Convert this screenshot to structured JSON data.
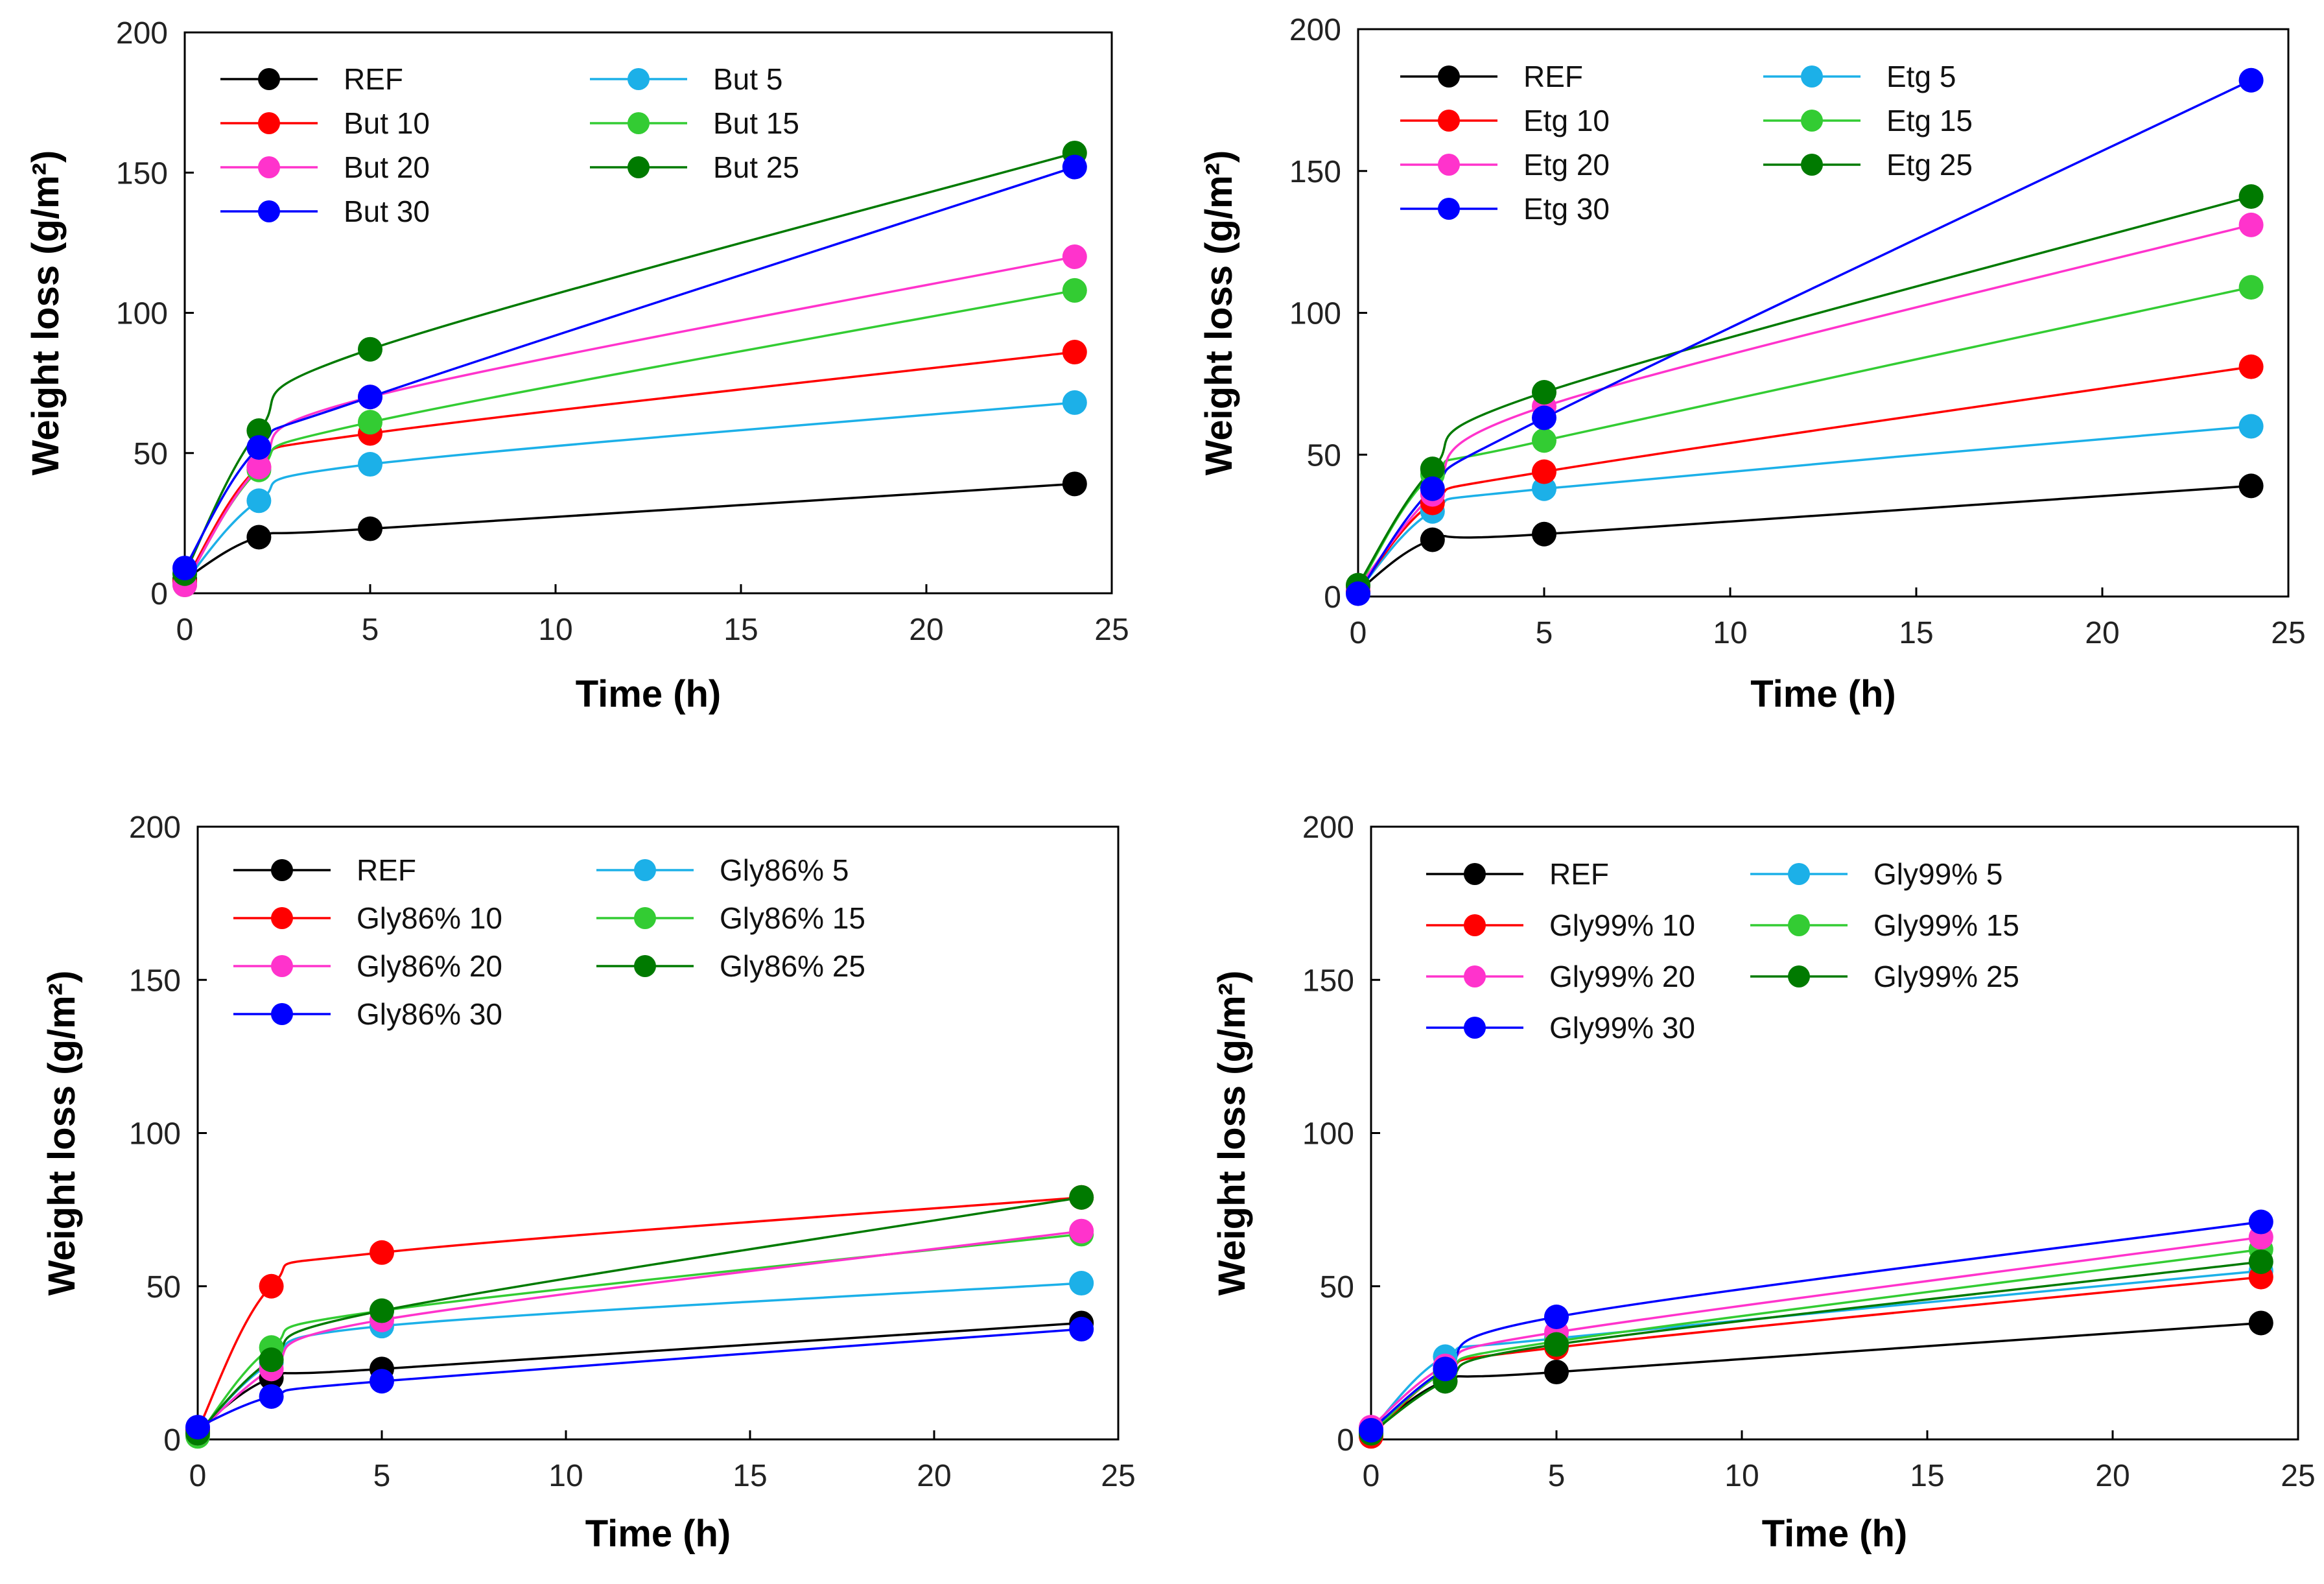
{
  "chart_data": [
    {
      "type": "line",
      "xlabel": "Time (h)",
      "ylabel": "Weight loss (g/m²)",
      "xlim": [
        0,
        25
      ],
      "ylim": [
        0,
        200
      ],
      "xticks": [
        0,
        5,
        10,
        15,
        20,
        25
      ],
      "yticks": [
        0,
        50,
        100,
        150,
        200
      ],
      "legend_columns": 2,
      "legend_placement": "top-left",
      "x": [
        0,
        2,
        5,
        24
      ],
      "series": [
        {
          "name": "REF",
          "color": "#000000",
          "values": [
            5,
            20,
            23,
            39
          ]
        },
        {
          "name": "But 5",
          "color": "#1CB0E8",
          "values": [
            4,
            33,
            46,
            68
          ]
        },
        {
          "name": "But 10",
          "color": "#FF0000",
          "values": [
            4,
            45,
            57,
            86
          ]
        },
        {
          "name": "But 15",
          "color": "#33CC33",
          "values": [
            3,
            44,
            61,
            108
          ]
        },
        {
          "name": "But 20",
          "color": "#FF33CC",
          "values": [
            3,
            45,
            70,
            120
          ]
        },
        {
          "name": "But 25",
          "color": "#007A00",
          "values": [
            7,
            58,
            87,
            157
          ]
        },
        {
          "name": "But 30",
          "color": "#0000FF",
          "values": [
            9,
            52,
            70,
            152
          ]
        }
      ]
    },
    {
      "type": "line",
      "xlabel": "Time (h)",
      "ylabel": "Weight loss (g/m²)",
      "xlim": [
        0,
        25
      ],
      "ylim": [
        0,
        200
      ],
      "xticks": [
        0,
        5,
        10,
        15,
        20,
        25
      ],
      "yticks": [
        0,
        50,
        100,
        150,
        200
      ],
      "legend_columns": 2,
      "legend_placement": "top-left",
      "x": [
        0,
        2,
        5,
        24
      ],
      "series": [
        {
          "name": "REF",
          "color": "#000000",
          "values": [
            2,
            20,
            22,
            39
          ]
        },
        {
          "name": "Etg 5",
          "color": "#1CB0E8",
          "values": [
            2,
            30,
            38,
            60
          ]
        },
        {
          "name": "Etg 10",
          "color": "#FF0000",
          "values": [
            2,
            33,
            44,
            81
          ]
        },
        {
          "name": "Etg 15",
          "color": "#33CC33",
          "values": [
            3,
            43,
            55,
            109
          ]
        },
        {
          "name": "Etg 20",
          "color": "#FF33CC",
          "values": [
            3,
            36,
            67,
            131
          ]
        },
        {
          "name": "Etg 25",
          "color": "#007A00",
          "values": [
            4,
            45,
            72,
            141
          ]
        },
        {
          "name": "Etg 30",
          "color": "#0000FF",
          "values": [
            1,
            38,
            63,
            182
          ]
        }
      ]
    },
    {
      "type": "line",
      "xlabel": "Time (h)",
      "ylabel": "Weight loss (g/m²)",
      "xlim": [
        0,
        25
      ],
      "ylim": [
        0,
        200
      ],
      "xticks": [
        0,
        5,
        10,
        15,
        20,
        25
      ],
      "yticks": [
        0,
        50,
        100,
        150,
        200
      ],
      "legend_columns": 2,
      "legend_placement": "top-left",
      "x": [
        0,
        2,
        5,
        24
      ],
      "series": [
        {
          "name": "REF",
          "color": "#000000",
          "values": [
            3,
            20,
            23,
            38
          ]
        },
        {
          "name": "Gly86% 5",
          "color": "#1CB0E8",
          "values": [
            2,
            25,
            37,
            51
          ]
        },
        {
          "name": "Gly86% 10",
          "color": "#FF0000",
          "values": [
            3,
            50,
            61,
            79
          ]
        },
        {
          "name": "Gly86% 15",
          "color": "#33CC33",
          "values": [
            1,
            30,
            42,
            67
          ]
        },
        {
          "name": "Gly86% 20",
          "color": "#FF33CC",
          "values": [
            2,
            23,
            39,
            68
          ]
        },
        {
          "name": "Gly86% 25",
          "color": "#007A00",
          "values": [
            2,
            26,
            42,
            79
          ]
        },
        {
          "name": "Gly86% 30",
          "color": "#0000FF",
          "values": [
            4,
            14,
            19,
            36
          ]
        }
      ]
    },
    {
      "type": "line",
      "xlabel": "Time (h)",
      "ylabel": "Weight loss (g/m²)",
      "xlim": [
        0,
        25
      ],
      "ylim": [
        0,
        200
      ],
      "xticks": [
        0,
        5,
        10,
        15,
        20,
        25
      ],
      "yticks": [
        0,
        50,
        100,
        150,
        200
      ],
      "legend_columns": 2,
      "legend_placement": "top-left",
      "x": [
        0,
        2,
        5,
        24
      ],
      "series": [
        {
          "name": "REF",
          "color": "#000000",
          "values": [
            2,
            19,
            22,
            38
          ]
        },
        {
          "name": "Gly99% 5",
          "color": "#1CB0E8",
          "values": [
            3,
            27,
            33,
            55
          ]
        },
        {
          "name": "Gly99% 10",
          "color": "#FF0000",
          "values": [
            1,
            22,
            30,
            53
          ]
        },
        {
          "name": "Gly99% 15",
          "color": "#33CC33",
          "values": [
            2,
            22,
            32,
            62
          ]
        },
        {
          "name": "Gly99% 20",
          "color": "#FF33CC",
          "values": [
            4,
            24,
            35,
            66
          ]
        },
        {
          "name": "Gly99% 25",
          "color": "#007A00",
          "values": [
            2,
            19,
            31,
            58
          ]
        },
        {
          "name": "Gly99% 30",
          "color": "#0000FF",
          "values": [
            3,
            23,
            40,
            71
          ]
        }
      ]
    }
  ]
}
